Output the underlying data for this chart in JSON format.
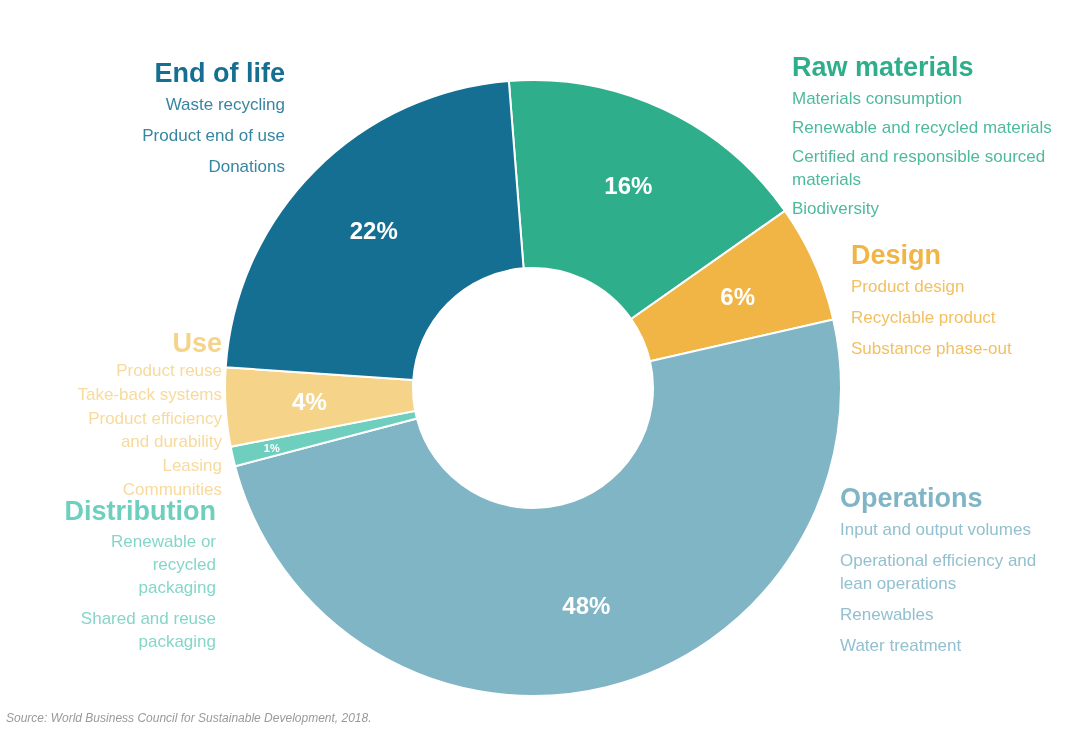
{
  "chart_data": {
    "type": "donut",
    "categories": [
      "Raw materials",
      "Design",
      "Operations",
      "Distribution",
      "Use",
      "End of life"
    ],
    "values": [
      16,
      6,
      48,
      1,
      4,
      22
    ],
    "value_labels": [
      "16%",
      "6%",
      "48%",
      "1%",
      "4%",
      "22%"
    ],
    "colors": [
      "#2fae8c",
      "#f0b545",
      "#80b5c6",
      "#6fcfbf",
      "#f5d48a",
      "#156f92"
    ],
    "annotations": [
      {
        "text": "Materials consumption",
        "x": "Raw materials"
      },
      {
        "text": "Renewable and recycled materials",
        "x": "Raw materials"
      },
      {
        "text": "Certified and responsible sourced materials",
        "x": "Raw materials"
      },
      {
        "text": "Biodiversity",
        "x": "Raw materials"
      },
      {
        "text": "Product design",
        "x": "Design"
      },
      {
        "text": "Recyclable product",
        "x": "Design"
      },
      {
        "text": "Substance phase-out",
        "x": "Design"
      },
      {
        "text": "Input and output volumes",
        "x": "Operations"
      },
      {
        "text": "Operational efficiency and lean operations",
        "x": "Operations"
      },
      {
        "text": "Renewables",
        "x": "Operations"
      },
      {
        "text": "Water treatment",
        "x": "Operations"
      },
      {
        "text": "Renewable or recycled packaging",
        "x": "Distribution"
      },
      {
        "text": "Shared and reuse packaging",
        "x": "Distribution"
      },
      {
        "text": "Product reuse",
        "x": "Use"
      },
      {
        "text": "Take-back systems",
        "x": "Use"
      },
      {
        "text": "Product efficiency and durability",
        "x": "Use"
      },
      {
        "text": "Leasing",
        "x": "Use"
      },
      {
        "text": "Communities",
        "x": "Use"
      },
      {
        "text": "Waste recycling",
        "x": "End of life"
      },
      {
        "text": "Product end of use",
        "x": "End of life"
      },
      {
        "text": "Donations",
        "x": "End of life"
      },
      "Source: World Business Council for Sustainable Development, 2018."
    ]
  }
}
